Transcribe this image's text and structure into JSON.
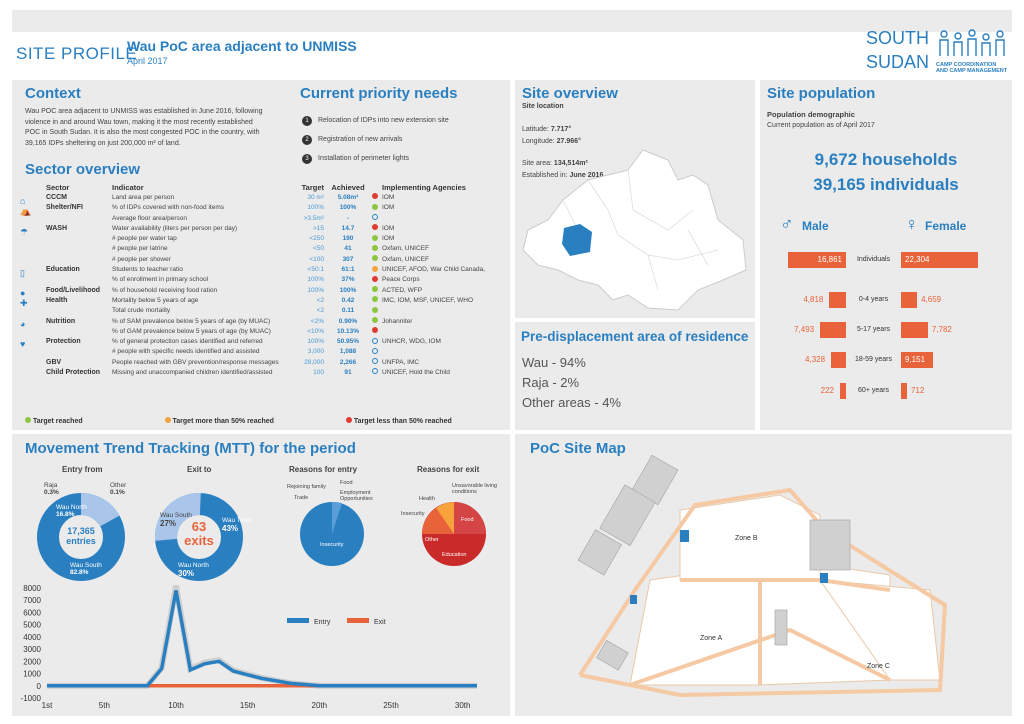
{
  "header": {
    "site_profile": "SITE PROFILE",
    "title": "Wau PoC area adjacent to UNMISS",
    "date": "April 2017",
    "logo_country_1": "SOUTH",
    "logo_country_2": "SUDAN",
    "logo_sub_1": "CAMP COORDINATION",
    "logo_sub_2": "AND CAMP MANAGEMENT"
  },
  "context": {
    "heading": "Context",
    "text_1": "Wau POC area adjacent to UNMISS was established in June 2016, following",
    "text_2": "violence in and around Wau town, making it the most recently established",
    "text_3": "POC in South Sudan. It is also the most congested POC in the country, with",
    "text_4": "39,165 IDPs sheltering on just 200,000 m² of land."
  },
  "priority": {
    "heading": "Current priority needs",
    "items": [
      {
        "n": "1",
        "text": "Relocation of IDPs into new extension site"
      },
      {
        "n": "2",
        "text": "Registration of new arrivals"
      },
      {
        "n": "3",
        "text": "Installation of perimeter lights"
      }
    ]
  },
  "sector": {
    "heading": "Sector overview",
    "cols": [
      "Sector",
      "Indicator",
      "Target",
      "Achieved",
      "Implementing Agencies"
    ],
    "rows": [
      {
        "sector": "CCCM",
        "indicator": "Land area per person",
        "target": "30 m²",
        "achieved": "5.08m²",
        "status": "red",
        "agencies": "IOM"
      },
      {
        "sector": "Shelter/NFI",
        "indicator": "% of IDPs covered with non-food items",
        "target": "100%",
        "achieved": "100%",
        "status": "green",
        "agencies": "IOM"
      },
      {
        "sector": "",
        "indicator": "Average floor area/person",
        "target": ">3.5m²",
        "achieved": "-",
        "status": "ring",
        "agencies": ""
      },
      {
        "sector": "WASH",
        "indicator": "Water availability (liters per person per day)",
        "target": ">15",
        "achieved": "14.7",
        "status": "red",
        "agencies": "IOM"
      },
      {
        "sector": "",
        "indicator": "# people per water tap",
        "target": "<250",
        "achieved": "190",
        "status": "green",
        "agencies": "IOM"
      },
      {
        "sector": "",
        "indicator": "# people per latrine",
        "target": "<50",
        "achieved": "41",
        "status": "green",
        "agencies": "Oxfam, UNICEF"
      },
      {
        "sector": "",
        "indicator": "# people per shower",
        "target": "<100",
        "achieved": "307",
        "status": "green",
        "agencies": "Oxfam, UNICEF"
      },
      {
        "sector": "Education",
        "indicator": "Students to teacher ratio",
        "target": "<50:1",
        "achieved": "61:1",
        "status": "orange",
        "agencies": "UNICEF, AFOD, War Child Canada,"
      },
      {
        "sector": "",
        "indicator": "% of enrollment in primary school",
        "target": "100%",
        "achieved": "37%",
        "status": "red",
        "agencies": "Peace Corps"
      },
      {
        "sector": "Food/Livelihood",
        "indicator": "% of household receiving food ration",
        "target": "100%",
        "achieved": "100%",
        "status": "green",
        "agencies": "ACTED, WFP"
      },
      {
        "sector": "Health",
        "indicator": "Mortality below 5 years of age",
        "target": "<2",
        "achieved": "0.42",
        "status": "green",
        "agencies": "IMC, IOM, MSF, UNICEF, WHO"
      },
      {
        "sector": "",
        "indicator": "Total crude mortality",
        "target": "<2",
        "achieved": "0.11",
        "status": "green",
        "agencies": ""
      },
      {
        "sector": "Nutrition",
        "indicator": "% of SAM prevalence below 5 years of age (by MUAC)",
        "target": "<2%",
        "achieved": "0.90%",
        "status": "green",
        "agencies": "Johanniter"
      },
      {
        "sector": "",
        "indicator": "% of GAM prevalence below 5 years of age (by MUAC)",
        "target": "<10%",
        "achieved": "10.13%",
        "status": "red",
        "agencies": ""
      },
      {
        "sector": "Protection",
        "indicator": "% of general protection cases identified and referred",
        "target": "100%",
        "achieved": "50.95%",
        "status": "ring",
        "agencies": "UNHCR, WDG, IOM"
      },
      {
        "sector": "",
        "indicator": "# people with specific needs identified and assisted",
        "target": "3,000",
        "achieved": "1,088",
        "status": "ring",
        "agencies": ""
      },
      {
        "sector": "GBV",
        "indicator": "People reached with GBV prevention/response messages",
        "target": "28,000",
        "achieved": "2,266",
        "status": "ring",
        "agencies": "UNFPA, IMC"
      },
      {
        "sector": "Child Protection",
        "indicator": "Missing and unaccompanied children identified/assisted",
        "target": "100",
        "achieved": "91",
        "status": "ring",
        "agencies": "UNICEF, Hold the Child"
      }
    ],
    "legend": [
      "Target reached",
      "Target more than 50% reached",
      "Target less than 50% reached"
    ],
    "colors": {
      "green": "#8cc63f",
      "orange": "#f7a23b",
      "red": "#e03c31",
      "ring": "#2a7fc1"
    }
  },
  "site": {
    "heading": "Site overview",
    "loc_label": "Site location",
    "lat_label": "Latitude:",
    "lat": "7.717°",
    "lon_label": "Longitude:",
    "lon": "27.966°",
    "area_label": "Site area:",
    "area": "134,514m²",
    "est_label": "Established in:",
    "est": "June 2016"
  },
  "predisp": {
    "heading": "Pre-displacement area of residence",
    "items": [
      "Wau - 94%",
      "Raja - 2%",
      "Other areas - 4%"
    ]
  },
  "population": {
    "heading": "Site population",
    "sub": "Population demographic",
    "sub2": "Current population as of April 2017",
    "households": "9,672 households",
    "individuals": "39,165 individuals",
    "male": "Male",
    "female": "Female",
    "rows": [
      {
        "label": "Individuals",
        "male": "16,861",
        "female": "22,304",
        "m": 16861,
        "f": 22304
      },
      {
        "label": "0-4 years",
        "male": "4,818",
        "female": "4,659",
        "m": 4818,
        "f": 4659
      },
      {
        "label": "5-17 years",
        "male": "7,493",
        "female": "7,782",
        "m": 7493,
        "f": 7782
      },
      {
        "label": "18-59 years",
        "male": "4,328",
        "female": "9,151",
        "m": 4328,
        "f": 9151
      },
      {
        "label": "60+ years",
        "male": "222",
        "female": "712",
        "m": 222,
        "f": 712
      }
    ]
  },
  "mtt": {
    "heading": "Movement Trend Tracking (MTT) for the period",
    "entry_from": "Entry from",
    "exit_to": "Exit to",
    "reasons_entry": "Reasons for entry",
    "reasons_exit": "Reasons for exit",
    "entry_total": "17,365",
    "entry_total_label": "entries",
    "exit_total": "63",
    "exit_total_label": "exits",
    "entry_labels": {
      "raja": "Raja",
      "raja_v": "0.3%",
      "other": "Other",
      "other_v": "0.1%",
      "wau_north": "Wau North",
      "wau_north_v": "16.8%",
      "wau_south": "Wau South",
      "wau_south_v": "82.8%"
    },
    "exit_labels": {
      "wau_south": "Wau South",
      "wau_south_v": "27%",
      "wau_town": "Wau Town",
      "wau_town_v": "43%",
      "wau_north": "Wau North",
      "wau_north_v": "30%"
    },
    "re_labels": [
      "Rejoining family",
      "Food",
      "Employment Opportunities",
      "Trade",
      "Insecurity"
    ],
    "rx_labels": [
      "Unsavorable living conditions",
      "Health",
      "Insecurity",
      "Food",
      "Other",
      "Education"
    ]
  },
  "chart_data": {
    "type": "line",
    "title": "",
    "xlabel": "",
    "ylabel": "",
    "x_ticks": [
      "1st",
      "5th",
      "10th",
      "15th",
      "20th",
      "25th",
      "30th"
    ],
    "y_ticks": [
      "8000",
      "7000",
      "6000",
      "5000",
      "4000",
      "3000",
      "2000",
      "1000",
      "0",
      "-1000"
    ],
    "ylim": [
      -1000,
      8000
    ],
    "series": [
      {
        "name": "Entry",
        "color": "#2a7fc1",
        "values": [
          0,
          0,
          0,
          0,
          0,
          0,
          0,
          0,
          1400,
          7800,
          1300,
          1800,
          2000,
          1200,
          900,
          600,
          400,
          200,
          100,
          0,
          0,
          0,
          0,
          0,
          0,
          0,
          0,
          0,
          0,
          0,
          0
        ]
      },
      {
        "name": "Exit",
        "color": "#e8633a",
        "values": [
          0,
          0,
          0,
          0,
          0,
          0,
          0,
          0,
          0,
          0,
          0,
          0,
          0,
          0,
          0,
          0,
          0,
          0,
          0,
          0,
          0,
          0,
          0,
          0,
          0,
          0,
          0,
          0,
          0,
          0,
          0
        ]
      }
    ]
  },
  "map": {
    "heading": "PoC Site Map",
    "zone_a": "Zone A",
    "zone_b": "Zone B",
    "zone_c": "Zone C"
  }
}
